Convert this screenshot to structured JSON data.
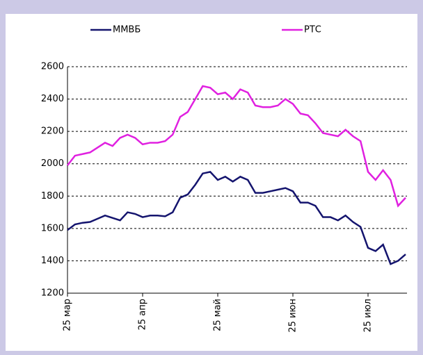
{
  "chart_data": {
    "type": "line",
    "categories": [
      "25 мар",
      null,
      null,
      null,
      null,
      null,
      null,
      null,
      null,
      null,
      "25 апр",
      null,
      null,
      null,
      null,
      null,
      null,
      null,
      null,
      null,
      "25 май",
      null,
      null,
      null,
      null,
      null,
      null,
      null,
      null,
      null,
      "25 июн",
      null,
      null,
      null,
      null,
      null,
      null,
      null,
      null,
      null,
      "25 июл",
      null,
      null,
      null,
      null,
      null
    ],
    "series": [
      {
        "name": "ММВБ",
        "color": "#14146e",
        "values": [
          1590,
          1625,
          1635,
          1640,
          1660,
          1680,
          1665,
          1650,
          1700,
          1690,
          1670,
          1680,
          1680,
          1675,
          1700,
          1790,
          1810,
          1870,
          1940,
          1950,
          1900,
          1920,
          1890,
          1920,
          1900,
          1820,
          1820,
          1830,
          1840,
          1850,
          1830,
          1760,
          1760,
          1740,
          1670,
          1670,
          1650,
          1680,
          1640,
          1610,
          1480,
          1460,
          1500,
          1380,
          1400,
          1440
        ]
      },
      {
        "name": "РТС",
        "color": "#e020e0",
        "values": [
          1990,
          2050,
          2060,
          2070,
          2100,
          2130,
          2110,
          2160,
          2180,
          2160,
          2120,
          2130,
          2130,
          2140,
          2180,
          2290,
          2320,
          2400,
          2480,
          2470,
          2430,
          2440,
          2400,
          2460,
          2440,
          2360,
          2350,
          2350,
          2360,
          2400,
          2370,
          2310,
          2300,
          2250,
          2190,
          2180,
          2170,
          2210,
          2170,
          2140,
          1950,
          1900,
          1960,
          1900,
          1740,
          1790
        ]
      }
    ],
    "ylim": [
      1200,
      2600
    ],
    "yticks": [
      1200,
      1400,
      1600,
      1800,
      2000,
      2200,
      2400,
      2600
    ],
    "grid": true
  }
}
